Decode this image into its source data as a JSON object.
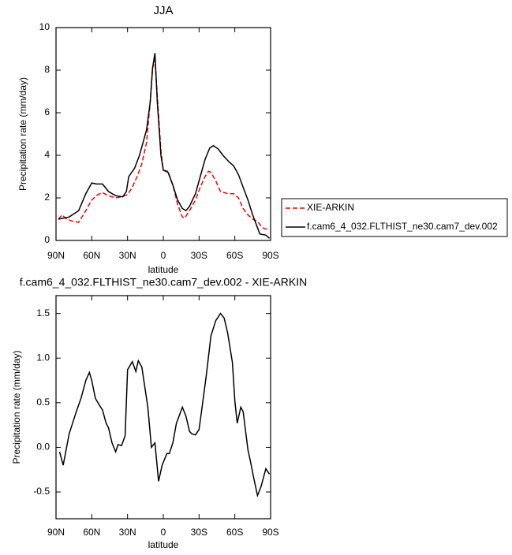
{
  "chart_data": [
    {
      "type": "line",
      "title": "JJA",
      "xlabel": "latitude",
      "ylabel": "Precipitation rate (mm/day)",
      "xlim": [
        90,
        -90
      ],
      "ylim": [
        0,
        10
      ],
      "xticks": [
        {
          "value": 90,
          "label": "90N"
        },
        {
          "value": 60,
          "label": "60N"
        },
        {
          "value": 30,
          "label": "30N"
        },
        0,
        {
          "value": -30,
          "label": "30S"
        },
        {
          "value": -60,
          "label": "60S"
        },
        {
          "value": -90,
          "label": "90S"
        }
      ],
      "yticks": [
        0,
        2,
        4,
        6,
        8,
        10
      ],
      "legend": "right",
      "series": [
        {
          "name": "XIE-ARKIN",
          "color": "#ff0000",
          "dash": true,
          "x": [
            88,
            85,
            81,
            76,
            71,
            65,
            60,
            55,
            51,
            46,
            40,
            35,
            30,
            26,
            22,
            18,
            14,
            11,
            9,
            7,
            5,
            2,
            0,
            -4,
            -8,
            -12,
            -16,
            -18,
            -22,
            -27,
            -31,
            -35,
            -38,
            -40,
            -44,
            -48,
            -54,
            -59,
            -63,
            -67,
            -71,
            -75,
            -79,
            -83,
            -88
          ],
          "values": [
            1.0,
            1.2,
            1.0,
            0.9,
            0.85,
            1.4,
            1.9,
            2.15,
            2.25,
            2.1,
            2.0,
            2.05,
            2.15,
            2.5,
            3.0,
            3.6,
            4.6,
            6.5,
            8.1,
            8.5,
            6.8,
            4.2,
            3.3,
            3.25,
            2.6,
            1.7,
            1.1,
            1.05,
            1.4,
            1.9,
            2.5,
            3.0,
            3.25,
            3.2,
            2.8,
            2.3,
            2.2,
            2.2,
            2.0,
            1.5,
            1.2,
            1.0,
            0.9,
            0.6,
            0.5
          ]
        },
        {
          "name": "f.cam6_4_032.FLTHIST_ne30.cam7_dev.002",
          "color": "#000000",
          "dash": false,
          "x": [
            88,
            79,
            71,
            65,
            60,
            56,
            51,
            46,
            40,
            34,
            31,
            29,
            24,
            20,
            17,
            14,
            11,
            9,
            7,
            5,
            2,
            0,
            -4,
            -8,
            -12,
            -16,
            -19,
            -22,
            -27,
            -31,
            -35,
            -39,
            -42,
            -46,
            -50,
            -55,
            -59,
            -63,
            -67,
            -71,
            -75,
            -79,
            -81,
            -86,
            -89
          ],
          "values": [
            1.0,
            1.1,
            1.4,
            2.2,
            2.7,
            2.65,
            2.65,
            2.3,
            2.1,
            2.05,
            2.3,
            3.0,
            3.4,
            4.0,
            4.6,
            5.2,
            6.5,
            8.1,
            8.8,
            6.5,
            4.0,
            3.3,
            3.2,
            2.6,
            1.9,
            1.5,
            1.4,
            1.6,
            2.2,
            3.0,
            3.8,
            4.35,
            4.45,
            4.3,
            4.0,
            3.7,
            3.5,
            3.1,
            2.5,
            1.9,
            1.2,
            0.6,
            0.3,
            0.25,
            0.1
          ]
        }
      ]
    },
    {
      "type": "line",
      "title": "f.cam6_4_032.FLTHIST_ne30.cam7_dev.002 - XIE-ARKIN",
      "xlabel": "latitude",
      "ylabel": "Precipitation rate (mm/day)",
      "xlim": [
        90,
        -90
      ],
      "ylim": [
        -0.8,
        1.7
      ],
      "xticks": [
        {
          "value": 90,
          "label": "90N"
        },
        {
          "value": 60,
          "label": "60N"
        },
        {
          "value": 30,
          "label": "30N"
        },
        0,
        {
          "value": -30,
          "label": "30S"
        },
        {
          "value": -60,
          "label": "60S"
        },
        {
          "value": -90,
          "label": "90S"
        }
      ],
      "yticks": [
        -0.5,
        {
          "value": 0,
          "label": "0.0"
        },
        0.5,
        {
          "value": 1,
          "label": "1.0"
        },
        1.5
      ],
      "series": [
        {
          "color": "#000000",
          "dash": false,
          "x": [
            87,
            84,
            79,
            73,
            69,
            65,
            62,
            60,
            57,
            54,
            51,
            48,
            46,
            43,
            40,
            38,
            35,
            32,
            30,
            26,
            23,
            21,
            18,
            13,
            10,
            7,
            4,
            1,
            -3,
            -5,
            -8,
            -11,
            -16,
            -19,
            -22,
            -24,
            -27,
            -30,
            -32,
            -36,
            -40,
            -44,
            -48,
            -51,
            -54,
            -58,
            -60,
            -62,
            -65,
            -67,
            -71,
            -73,
            -76,
            -79,
            -82,
            -86,
            -89
          ],
          "values": [
            -0.05,
            -0.2,
            0.15,
            0.4,
            0.55,
            0.75,
            0.84,
            0.75,
            0.55,
            0.48,
            0.42,
            0.27,
            0.22,
            0.05,
            -0.05,
            0.03,
            0.02,
            0.13,
            0.87,
            0.96,
            0.85,
            0.97,
            0.9,
            0.45,
            0.0,
            0.05,
            -0.38,
            -0.2,
            -0.07,
            -0.07,
            0.05,
            0.27,
            0.45,
            0.35,
            0.18,
            0.15,
            0.14,
            0.2,
            0.4,
            0.8,
            1.25,
            1.42,
            1.5,
            1.45,
            1.28,
            0.95,
            0.52,
            0.27,
            0.45,
            0.4,
            -0.03,
            -0.15,
            -0.35,
            -0.54,
            -0.44,
            -0.24,
            -0.3
          ]
        }
      ]
    }
  ]
}
